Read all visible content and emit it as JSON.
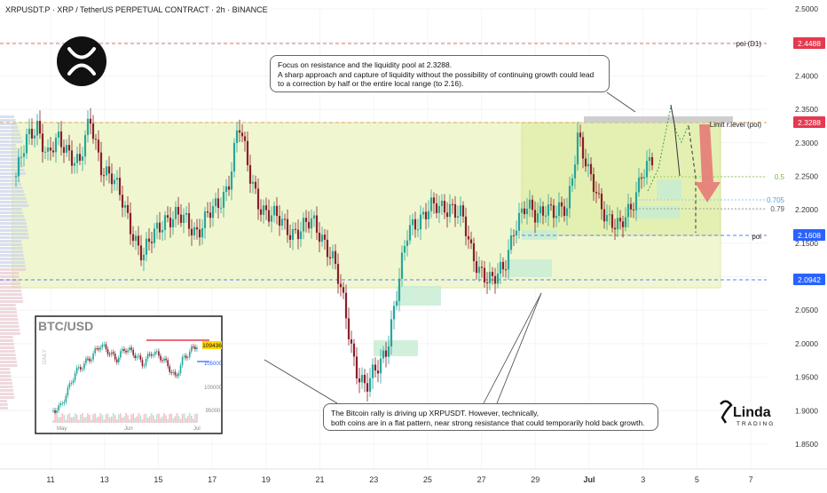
{
  "header": {
    "title": "XRPUSDT.P · XRP / TetherUS PERPETUAL CONTRACT · 2h · BINANCE"
  },
  "colors": {
    "candle_up": "#26a69a",
    "candle_down": "#8b1e2b",
    "range_fill": "#e6f2b8",
    "resistance_line": "#e0a060",
    "price_badge": "#e53950",
    "support_badge": "#2962ff",
    "arrow_red": "#e57373"
  },
  "callouts": {
    "top_line1": "Focus on resistance and the liquidity pool at 2.3288.",
    "top_line2": "A sharp approach and capture of liquidity without the possibility of continuing growth could lead",
    "top_line3": "to a correction by half or the entire local range (to 2.16).",
    "bottom_line1": "The Bitcoin rally is driving up XRPUSDT. However, technically,",
    "bottom_line2": "both coins are in a flat pattern, near strong resistance that could temporarily hold back growth."
  },
  "levels": {
    "poi_d1_label": "poi (D1)",
    "poi_d1_value": "2.4488",
    "limit_label": "Limit r.level (poi)",
    "limit_value": "2.3288",
    "poi_label": "poi",
    "poi_value": "2.1608",
    "support_value": "2.0942",
    "fib_05": "0.5",
    "fib_0705": "0.705",
    "fib_079": "0.79"
  },
  "inset": {
    "title": "BTC/USD",
    "side_label": "DAILY",
    "price_badge": "109436",
    "price_badge2": "105000",
    "tick_100000": "100000",
    "tick_95000": "95000",
    "x_labels": [
      "May",
      "Jun",
      "Jul"
    ]
  },
  "branding": {
    "logo_text": "Linda",
    "logo_sub": "TRADING"
  },
  "chart_data": {
    "type": "candlestick",
    "symbol": "XRPUSDT.P",
    "timeframe": "2h",
    "x_ticks": [
      "11",
      "13",
      "15",
      "17",
      "19",
      "21",
      "23",
      "25",
      "27",
      "29",
      "Jul",
      "3",
      "5",
      "7"
    ],
    "y_ticks": [
      "2.5000",
      "2.4500",
      "2.4000",
      "2.3500",
      "2.3000",
      "2.2500",
      "2.2000",
      "2.1500",
      "2.1000",
      "2.0500",
      "2.0000",
      "1.9500",
      "1.9000",
      "1.8500"
    ],
    "ylim": [
      1.82,
      2.515
    ],
    "path_points": [
      [
        0,
        2.25
      ],
      [
        2,
        2.3
      ],
      [
        4,
        2.33
      ],
      [
        6,
        2.28
      ],
      [
        8,
        2.3
      ],
      [
        10,
        2.29
      ],
      [
        12,
        2.27
      ],
      [
        14,
        2.33
      ],
      [
        16,
        2.27
      ],
      [
        18,
        2.25
      ],
      [
        20,
        2.21
      ],
      [
        22,
        2.17
      ],
      [
        24,
        2.13
      ],
      [
        26,
        2.16
      ],
      [
        28,
        2.19
      ],
      [
        30,
        2.19
      ],
      [
        32,
        2.18
      ],
      [
        34,
        2.17
      ],
      [
        36,
        2.19
      ],
      [
        38,
        2.2
      ],
      [
        40,
        2.24
      ],
      [
        42,
        2.33
      ],
      [
        44,
        2.25
      ],
      [
        46,
        2.21
      ],
      [
        48,
        2.19
      ],
      [
        50,
        2.18
      ],
      [
        52,
        2.17
      ],
      [
        54,
        2.17
      ],
      [
        56,
        2.18
      ],
      [
        58,
        2.16
      ],
      [
        60,
        2.12
      ],
      [
        62,
        2.05
      ],
      [
        64,
        1.97
      ],
      [
        66,
        1.93
      ],
      [
        68,
        1.96
      ],
      [
        70,
        2.0
      ],
      [
        72,
        2.08
      ],
      [
        74,
        2.17
      ],
      [
        76,
        2.19
      ],
      [
        78,
        2.2
      ],
      [
        80,
        2.2
      ],
      [
        82,
        2.21
      ],
      [
        84,
        2.19
      ],
      [
        86,
        2.13
      ],
      [
        88,
        2.11
      ],
      [
        90,
        2.09
      ],
      [
        92,
        2.11
      ],
      [
        94,
        2.18
      ],
      [
        96,
        2.2
      ],
      [
        98,
        2.19
      ],
      [
        100,
        2.21
      ],
      [
        102,
        2.19
      ],
      [
        104,
        2.2
      ],
      [
        106,
        2.32
      ],
      [
        108,
        2.25
      ],
      [
        110,
        2.21
      ],
      [
        112,
        2.19
      ],
      [
        114,
        2.17
      ],
      [
        116,
        2.2
      ],
      [
        118,
        2.26
      ],
      [
        120,
        2.27
      ]
    ],
    "total_steps": 120,
    "drop_projection_points": [
      [
        0,
        2.32
      ],
      [
        1,
        2.36
      ],
      [
        2,
        2.25
      ],
      [
        3,
        2.19
      ],
      [
        4,
        2.16
      ]
    ]
  }
}
